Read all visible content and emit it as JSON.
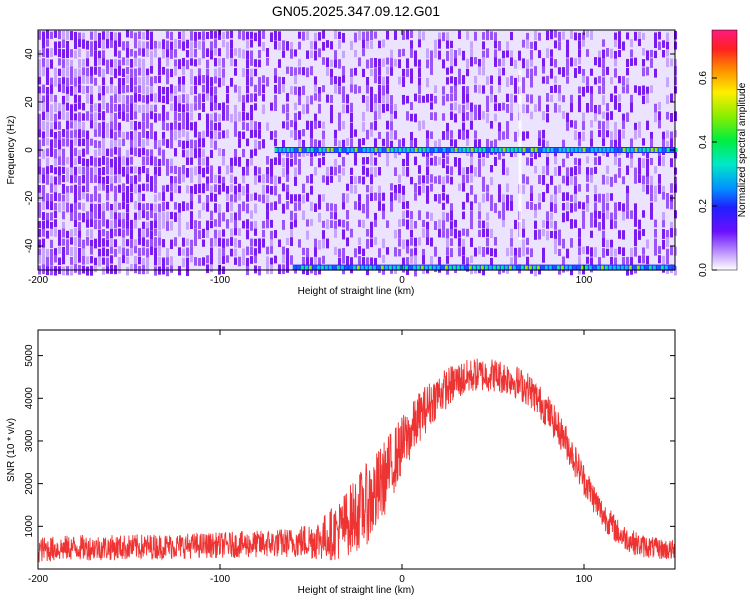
{
  "title": "GN05.2025.347.09.12.G01",
  "chart_data": [
    {
      "type": "heatmap",
      "xlabel": "Height of straight line (km)",
      "ylabel": "Frequency (Hz)",
      "xlim": [
        -200,
        150
      ],
      "ylim": [
        -50,
        50
      ],
      "xticks": [
        -200,
        -100,
        0,
        100
      ],
      "yticks": [
        -40,
        -20,
        0,
        20,
        40
      ],
      "colorbar": {
        "label": "Normalized spectral amplitude",
        "range": [
          0,
          0.75
        ],
        "ticks": [
          "0.0",
          "0.2",
          "0.4",
          "0.6"
        ]
      },
      "features": [
        {
          "desc": "carrier line",
          "frequency_hz": 0,
          "x_start_km": -70,
          "x_end_km": 150
        },
        {
          "desc": "edge band",
          "frequency_hz": -49,
          "x_start_km": -60,
          "x_end_km": 150
        }
      ]
    },
    {
      "type": "line",
      "xlabel": "Height of straight line (km)",
      "ylabel": "SNR (10 * v/v)",
      "xlim": [
        -200,
        150
      ],
      "ylim": [
        0,
        5600
      ],
      "xticks": [
        -200,
        -100,
        0,
        100
      ],
      "yticks": [
        1000,
        2000,
        3000,
        4000,
        5000
      ],
      "series": [
        {
          "color": "#ee3333",
          "x": [
            -200,
            -180,
            -160,
            -140,
            -120,
            -100,
            -80,
            -60,
            -45,
            -35,
            -25,
            -15,
            -10,
            -5,
            0,
            5,
            10,
            20,
            30,
            40,
            50,
            60,
            70,
            80,
            90,
            100,
            110,
            120,
            130,
            140,
            150
          ],
          "y": [
            450,
            500,
            500,
            520,
            540,
            560,
            580,
            620,
            700,
            900,
            1300,
            1700,
            2100,
            2500,
            2900,
            3200,
            3600,
            4100,
            4400,
            4550,
            4550,
            4450,
            4200,
            3700,
            3000,
            2100,
            1300,
            800,
            560,
            480,
            430
          ],
          "noise": [
            300,
            300,
            300,
            300,
            300,
            300,
            320,
            350,
            500,
            700,
            900,
            1000,
            900,
            800,
            700,
            650,
            600,
            500,
            450,
            400,
            400,
            400,
            400,
            400,
            400,
            380,
            350,
            300,
            280,
            250,
            250
          ]
        }
      ]
    }
  ]
}
